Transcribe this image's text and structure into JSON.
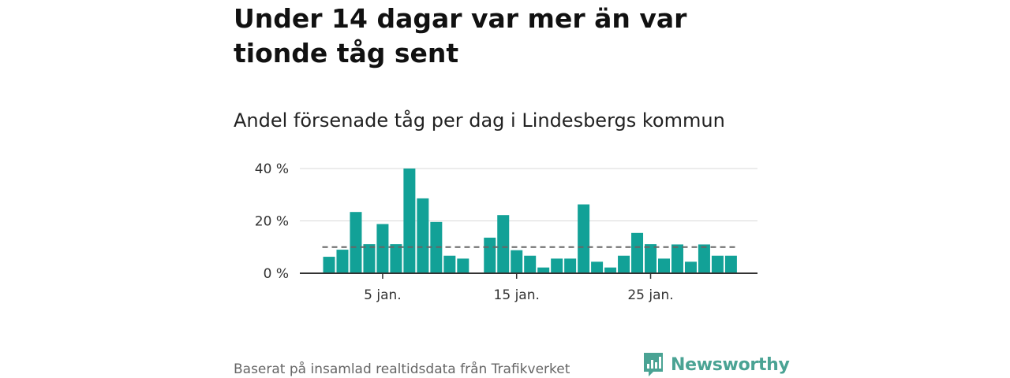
{
  "headline": "Under 14 dagar var mer än var tionde tåg sent",
  "subtitle": "Andel försenade tåg per dag i Lindesbergs kommun",
  "source": "Baserat på insamlad realtidsdata från Trafikverket",
  "logo": {
    "name": "Newsworthy",
    "icon": "newsworthy-bar-chart-icon",
    "color": "#4aa394"
  },
  "chart_data": {
    "type": "bar",
    "title": "",
    "xlabel": "",
    "ylabel": "",
    "x": [
      1,
      2,
      3,
      4,
      5,
      6,
      7,
      8,
      9,
      10,
      11,
      12,
      13,
      14,
      15,
      16,
      17,
      18,
      19,
      20,
      21,
      22,
      23,
      24,
      25,
      26,
      27,
      28,
      29,
      30,
      31
    ],
    "values": [
      6.3,
      9,
      23.4,
      11.1,
      18.8,
      11.1,
      40,
      28.6,
      19.6,
      6.7,
      5.6,
      null,
      13.6,
      22.2,
      8.8,
      6.7,
      2.2,
      5.6,
      5.6,
      26.3,
      4.4,
      2.2,
      6.7,
      15.4,
      11.1,
      5.6,
      11,
      4.4,
      11,
      6.7,
      6.7
    ],
    "ylim": [
      0,
      40
    ],
    "y_ticks": [
      0,
      20,
      40
    ],
    "y_tick_labels": [
      "0 %",
      "20 %",
      "40 %"
    ],
    "x_ticks": [
      5,
      15,
      25
    ],
    "x_tick_labels": [
      "5 jan.",
      "15 jan.",
      "25 jan."
    ],
    "reference_line": 10,
    "bar_color": "#12a197",
    "grid": true
  }
}
